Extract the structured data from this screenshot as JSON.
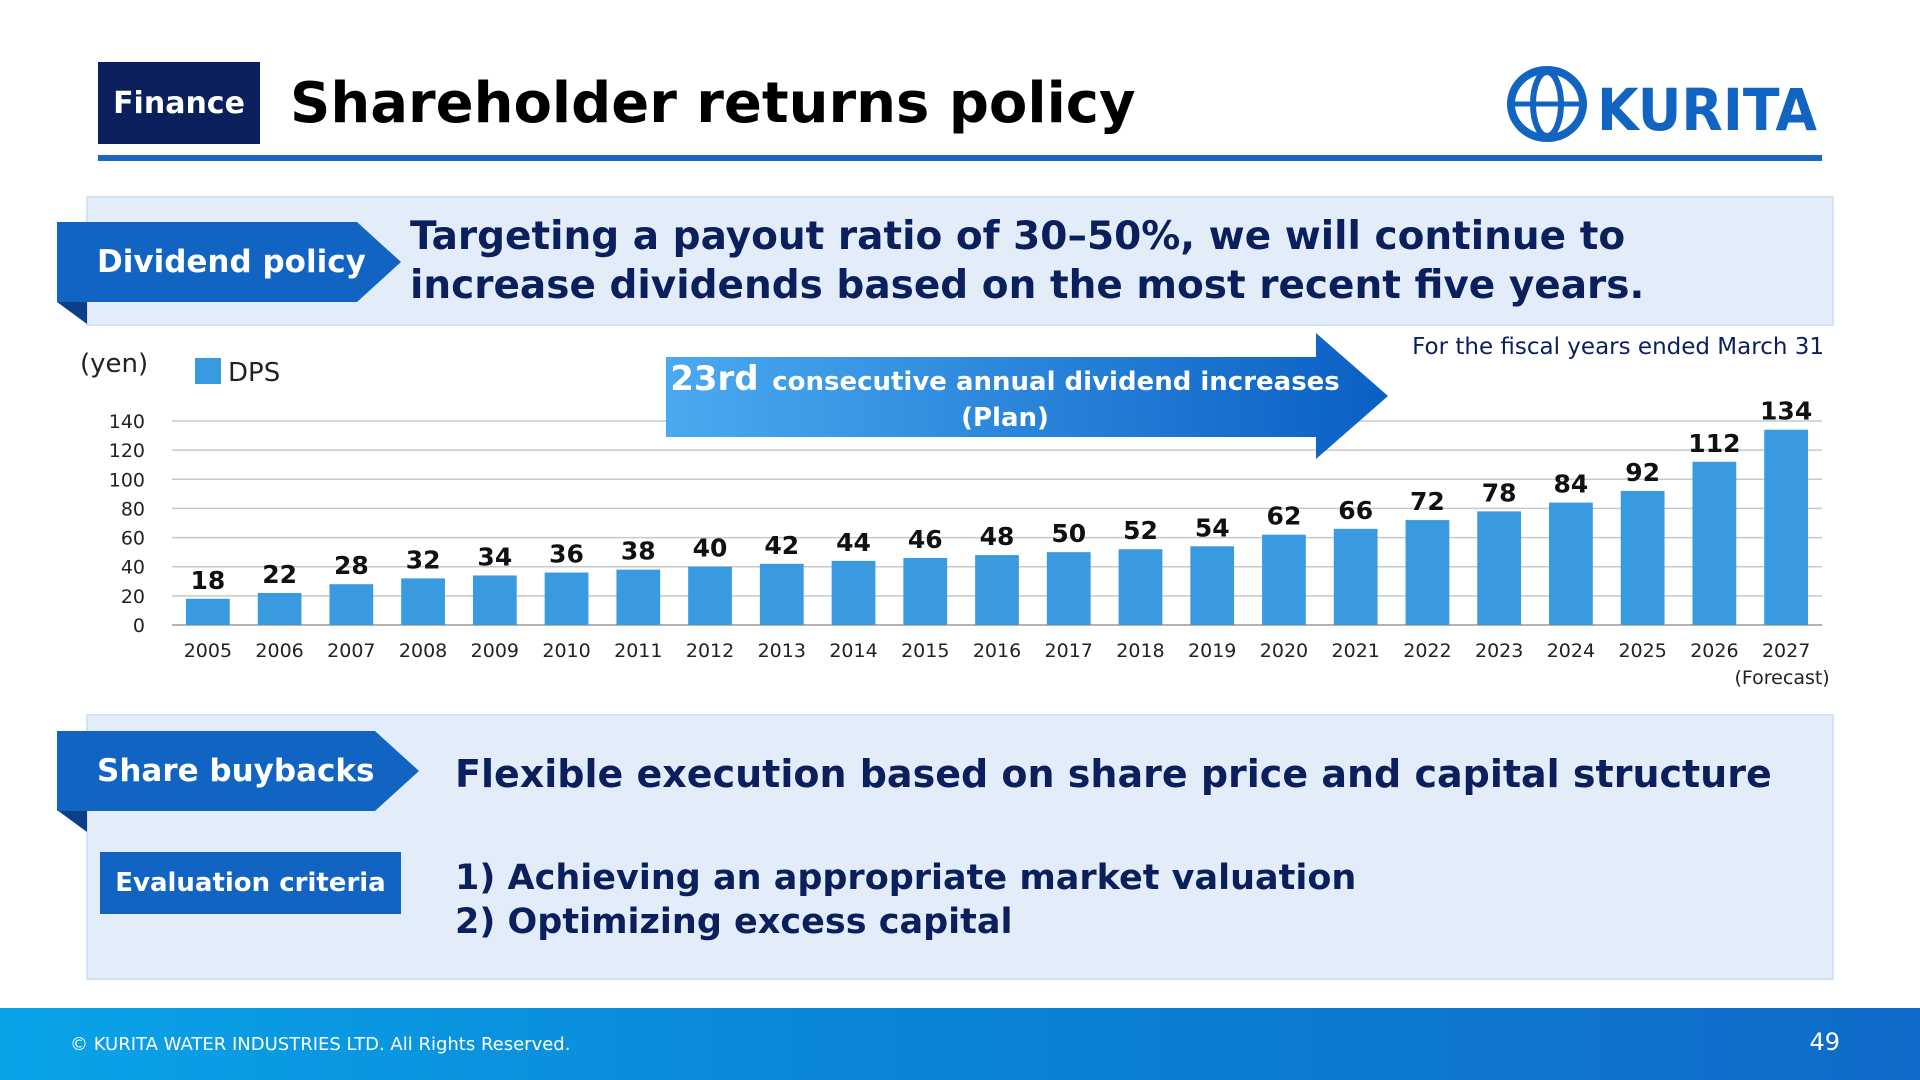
{
  "header": {
    "section_tag": "Finance",
    "title": "Shareholder returns policy",
    "logo_text": "KURITA"
  },
  "dividend_policy": {
    "label": "Dividend policy",
    "text": "Targeting a payout ratio of 30–50%, we will continue to increase dividends based on the most recent five years."
  },
  "chart_note": "For the fiscal years ended March 31",
  "chart_data": {
    "type": "bar",
    "ylabel": "(yen)",
    "ylim": [
      0,
      140
    ],
    "yticks": [
      0,
      20,
      40,
      60,
      80,
      100,
      120,
      140
    ],
    "grid": true,
    "legend": "top-left",
    "series": [
      {
        "name": "DPS",
        "color": "#3a9ae0",
        "values": [
          18,
          22,
          28,
          32,
          34,
          36,
          38,
          40,
          42,
          44,
          46,
          48,
          50,
          52,
          54,
          62,
          66,
          72,
          78,
          84,
          92,
          112,
          134
        ]
      }
    ],
    "categories": [
      "2005",
      "2006",
      "2007",
      "2008",
      "2009",
      "2010",
      "2011",
      "2012",
      "2013",
      "2014",
      "2015",
      "2016",
      "2017",
      "2018",
      "2019",
      "2020",
      "2021",
      "2022",
      "2023",
      "2024",
      "2025",
      "2026",
      "2027"
    ],
    "last_category_note": "(Forecast)",
    "annotation": {
      "highlight": "23rd",
      "line1": "consecutive annual dividend increases",
      "line2": "(Plan)"
    }
  },
  "share_buybacks": {
    "label": "Share buybacks",
    "text": "Flexible execution based on share price and capital structure",
    "criteria_label": "Evaluation criteria",
    "criteria": [
      "1)  Achieving an appropriate market valuation",
      "2)  Optimizing excess capital"
    ]
  },
  "footer": {
    "copyright": "© KURITA WATER INDUSTRIES LTD. All Rights Reserved.",
    "page_number": "49"
  },
  "colors": {
    "navy": "#0b1f5c",
    "accent_blue": "#1a66c2",
    "bar_blue": "#3a9ae0",
    "panel_bg": "#e3edf9"
  }
}
